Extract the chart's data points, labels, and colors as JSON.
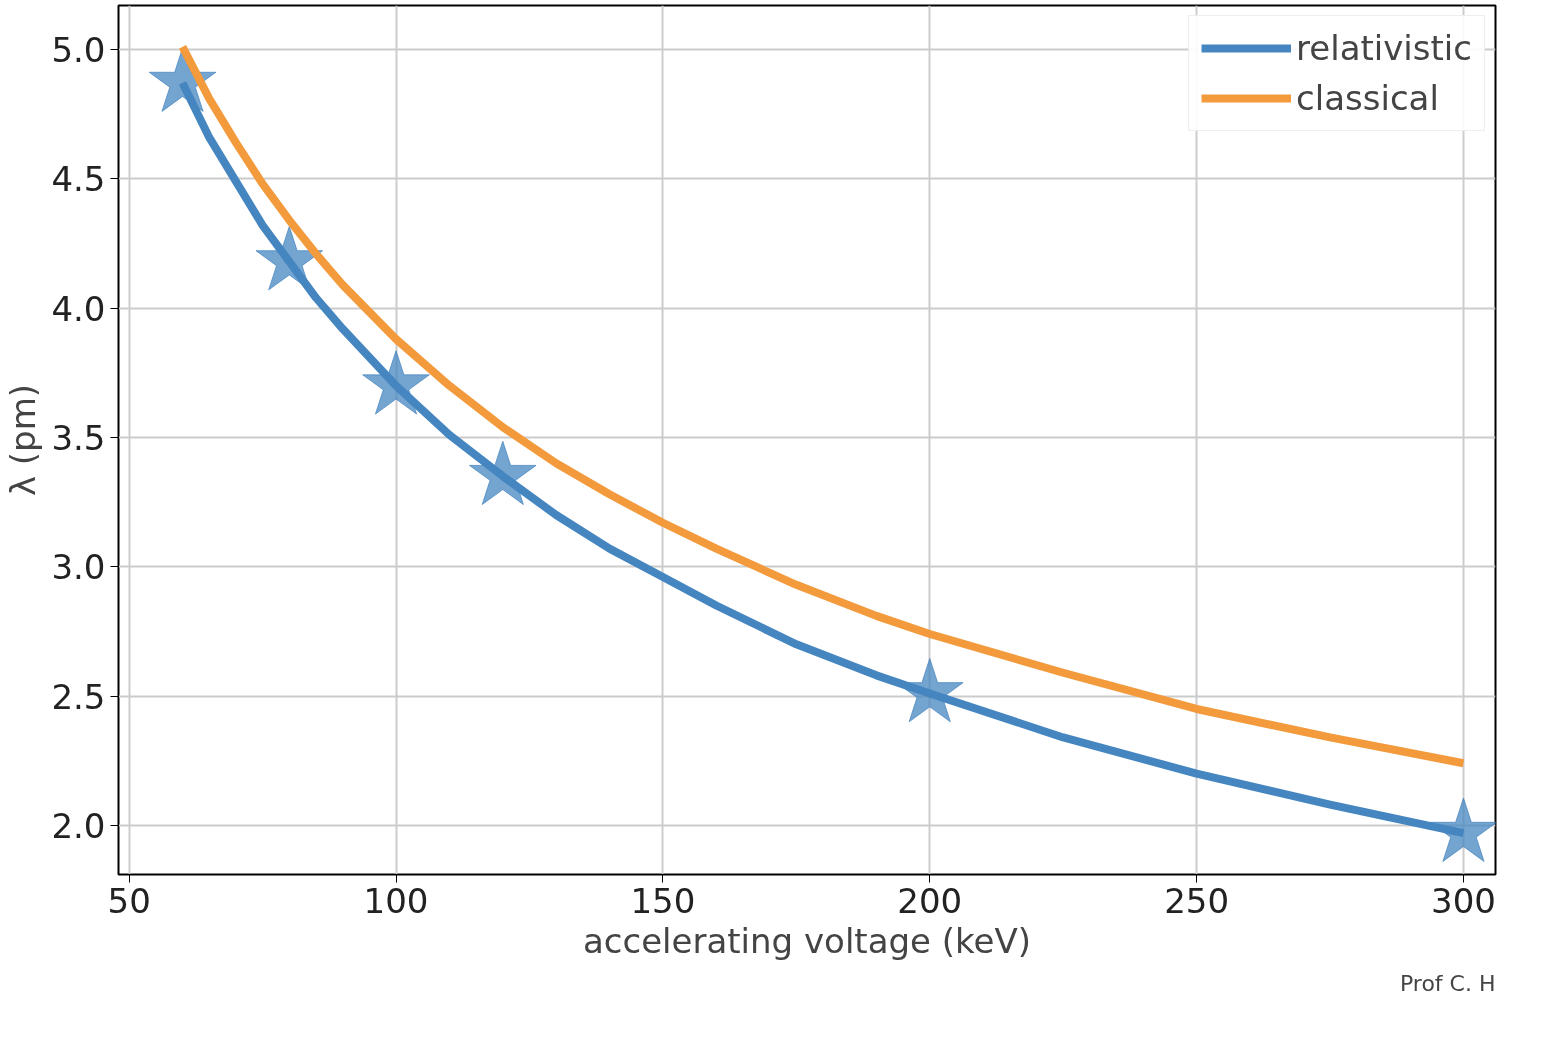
{
  "chart_data": {
    "type": "line",
    "xlabel": "accelerating voltage (keV)",
    "ylabel": "λ (pm)",
    "xlim": [
      48,
      306
    ],
    "ylim": [
      1.81,
      5.17
    ],
    "xticks": [
      50,
      100,
      150,
      200,
      250,
      300
    ],
    "yticks": [
      {
        "value": 2,
        "label": "2.0"
      },
      2.5,
      {
        "value": 3,
        "label": "3.0"
      },
      3.5,
      {
        "value": 4,
        "label": "4.0"
      },
      4.5,
      {
        "value": 5,
        "label": "5.0"
      }
    ],
    "grid": true,
    "legend": "top right",
    "series": [
      {
        "name": "relativistic",
        "color": "#4686c0",
        "x": [
          60,
          65,
          70,
          75,
          80,
          85,
          90,
          100,
          110,
          120,
          130,
          140,
          150,
          160,
          175,
          190,
          200,
          225,
          250,
          275,
          300
        ],
        "values": [
          4.87,
          4.66,
          4.49,
          4.32,
          4.18,
          4.04,
          3.92,
          3.7,
          3.51,
          3.35,
          3.2,
          3.07,
          2.96,
          2.85,
          2.7,
          2.58,
          2.51,
          2.34,
          2.2,
          2.08,
          1.97
        ]
      },
      {
        "name": "classical",
        "color": "#f39a3c",
        "x": [
          60,
          65,
          70,
          75,
          80,
          85,
          90,
          100,
          110,
          120,
          130,
          140,
          150,
          160,
          175,
          190,
          200,
          225,
          250,
          275,
          300
        ],
        "values": [
          5.01,
          4.81,
          4.64,
          4.48,
          4.34,
          4.21,
          4.09,
          3.88,
          3.7,
          3.54,
          3.4,
          3.28,
          3.17,
          3.07,
          2.93,
          2.81,
          2.74,
          2.59,
          2.45,
          2.34,
          2.24
        ]
      },
      {
        "type": "scatter",
        "marker": "star",
        "color": "#4686c0",
        "x": [
          60,
          80,
          100,
          120,
          200,
          300
        ],
        "values": [
          4.87,
          4.18,
          3.7,
          3.35,
          2.51,
          1.97
        ]
      }
    ],
    "annotations": [
      "Prof C. H"
    ]
  }
}
